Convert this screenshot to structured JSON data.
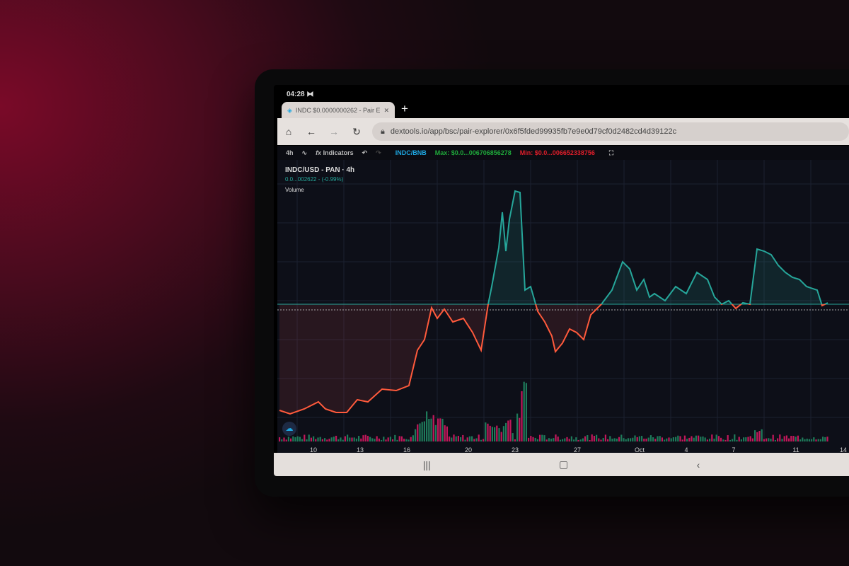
{
  "status_bar": {
    "time": "04:28",
    "icon": "media-icon"
  },
  "browser": {
    "tab_title": "INDC $0.0000000262 - Pair E",
    "new_tab": "+",
    "url": "dextools.io/app/bsc/pair-explorer/0x6f5fded99935fb7e9e0d79cf0d2482cd4d39122c"
  },
  "toolbar": {
    "interval": "4h",
    "indicators": "Indicators",
    "pair": "INDC/BNB",
    "max": "Max: $0.0...006706856278",
    "min": "Min: $0.0...006652338756"
  },
  "chart_legend": {
    "symbol": "INDC/USD - PAN · 4h",
    "price": "0.0...002622 - (-0.99%)",
    "volume": "Volume"
  },
  "colors": {
    "up": "#26a69a",
    "down": "#ef5350",
    "pair": "#1ea7e1",
    "max": "#1fa83a",
    "min": "#e01e2a"
  },
  "chart_data": {
    "type": "line",
    "x_ticks": [
      "10",
      "13",
      "16",
      "20",
      "23",
      "27",
      "Oct",
      "4",
      "7",
      "11",
      "14"
    ],
    "grid": true,
    "baseline_line": true,
    "volume_bars": true
  },
  "navbar": {
    "recents": "|||",
    "home": "▢",
    "back": "‹"
  }
}
